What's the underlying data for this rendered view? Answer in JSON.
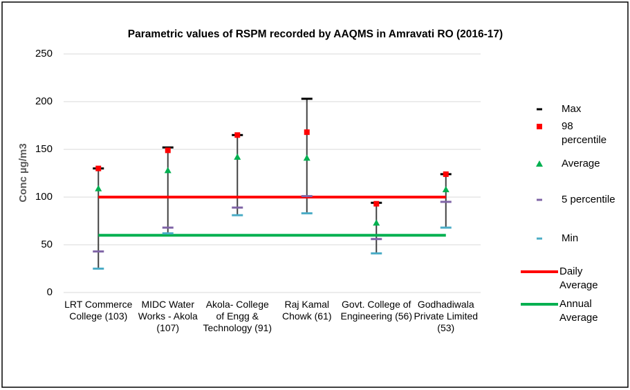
{
  "chart_data": {
    "type": "stock",
    "title": "Parametric values of RSPM  recorded by AAQMS in Amravati RO (2016-17)",
    "y_label": "Conc µg/m3",
    "categories": [
      "LRT Commerce College  (103)",
      "MIDC Water Works - Akola (107)",
      "Akola- College of Engg & Technology (91)",
      "Raj Kamal Chowk  (61)",
      "Govt. College of Engineering (56)",
      "Godhadiwala Private Limited  (53)"
    ],
    "ylim": [
      0,
      250
    ],
    "yticks": [
      0,
      50,
      100,
      150,
      200,
      250
    ],
    "grid": true,
    "series": [
      {
        "name": "Max",
        "color": "#000000",
        "marker": "dash",
        "values": [
          130,
          152,
          165,
          203,
          94,
          124
        ]
      },
      {
        "name": "98 percentile",
        "color": "#ff0000",
        "marker": "square",
        "values": [
          130,
          149,
          165,
          168,
          93,
          124
        ]
      },
      {
        "name": "Average",
        "color": "#00b050",
        "marker": "triangle",
        "values": [
          109,
          128,
          142,
          141,
          73,
          108
        ]
      },
      {
        "name": "5 percentile",
        "color": "#7f64a6",
        "marker": "dash",
        "values": [
          43,
          68,
          89,
          101,
          56,
          95
        ]
      },
      {
        "name": "Min",
        "color": "#4bacc6",
        "marker": "dash",
        "values": [
          25,
          62,
          81,
          83,
          41,
          68
        ]
      },
      {
        "name": "Daily Average",
        "color": "#ff0000",
        "marker": "line",
        "values": [
          100,
          100,
          100,
          100,
          100,
          100
        ]
      },
      {
        "name": "Annual Average",
        "color": "#00b050",
        "marker": "line",
        "values": [
          60,
          60,
          60,
          60,
          60,
          60
        ]
      }
    ]
  }
}
